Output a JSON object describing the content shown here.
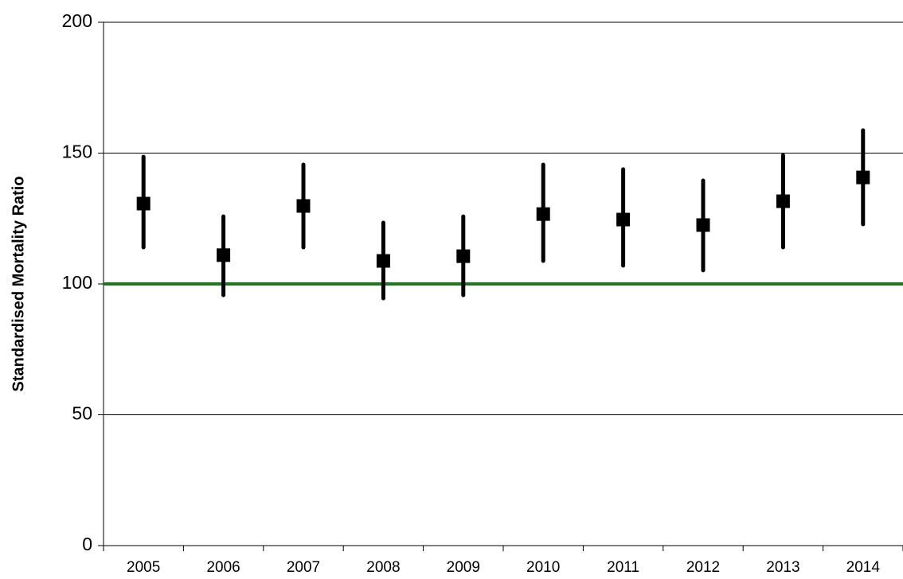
{
  "chart_data": {
    "type": "errorbar",
    "y_label": "Standardised Mortality Ratio",
    "categories": [
      "2005",
      "2006",
      "2007",
      "2008",
      "2009",
      "2010",
      "2011",
      "2012",
      "2013",
      "2014"
    ],
    "values": [
      130.7,
      111,
      129.8,
      108.8,
      110.6,
      126.7,
      124.6,
      122.5,
      131.6,
      140.7
    ],
    "lower": [
      114,
      95.7,
      114,
      94.5,
      95.7,
      108.8,
      107,
      105.2,
      114,
      122.8
    ],
    "upper": [
      148.6,
      125.8,
      145.6,
      123.4,
      125.8,
      145.6,
      143.8,
      139.5,
      149.2,
      158.7
    ],
    "color": "#000000",
    "reference_line": {
      "value": 100,
      "color": "#1a7a1a"
    },
    "ylim": [
      0,
      200
    ],
    "yticks": [
      0,
      50,
      100,
      150,
      200
    ],
    "grid": true
  }
}
